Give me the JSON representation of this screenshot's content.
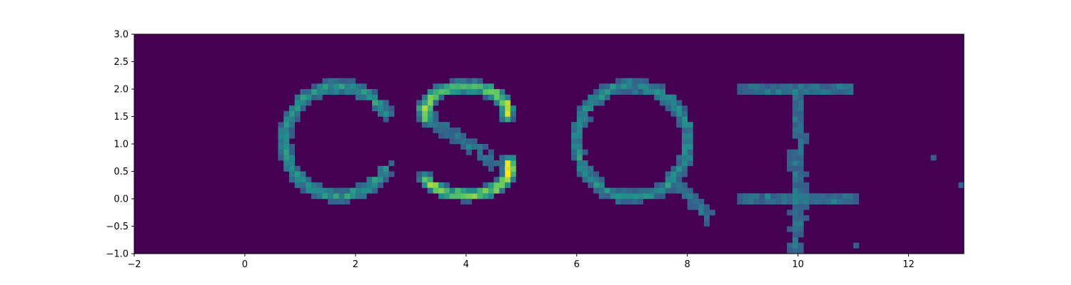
{
  "chart_data": {
    "type": "heatmap",
    "title": "",
    "xlabel": "",
    "ylabel": "",
    "xlim": [
      -2,
      13
    ],
    "ylim": [
      -1,
      3
    ],
    "xticks": [
      -2,
      0,
      2,
      4,
      6,
      8,
      10,
      12
    ],
    "xtick_labels": [
      "−2",
      "0",
      "2",
      "4",
      "6",
      "8",
      "10",
      "12"
    ],
    "yticks": [
      -1.0,
      -0.5,
      0.0,
      0.5,
      1.0,
      1.5,
      2.0,
      2.5,
      3.0
    ],
    "ytick_labels": [
      "−1.0",
      "−0.5",
      "0.0",
      "0.5",
      "1.0",
      "1.5",
      "2.0",
      "2.5",
      "3.0"
    ],
    "bin_size": 0.1,
    "colormap": "viridis",
    "background_color": "#440154",
    "grid": false,
    "glyph_shapes": [
      {
        "letter": "C",
        "center": [
          1.7,
          1.05
        ],
        "radius": 0.98,
        "gap_from_deg": -28,
        "gap_to_deg": 28
      },
      {
        "letter": "S",
        "center": [
          4.0,
          1.05
        ]
      },
      {
        "letter": "Q",
        "center": [
          7.0,
          1.05
        ],
        "radius": 1.0,
        "tail_from": [
          7.8,
          0.3
        ],
        "tail_to": [
          8.4,
          -0.35
        ]
      },
      {
        "letter": "⊥ / +",
        "vertical_x": 10.0,
        "vertical_y": [
          -1.0,
          2.0
        ],
        "top_bar": [
          [
            9.0,
            2.0
          ],
          [
            11.0,
            2.0
          ]
        ],
        "mid_bar": [
          [
            9.0,
            0.0
          ],
          [
            11.0,
            0.0
          ]
        ]
      }
    ],
    "isolated_cells": [
      {
        "x": 12.45,
        "y": 0.75
      },
      {
        "x": 12.95,
        "y": 0.25
      },
      {
        "x": 11.05,
        "y": -0.85
      }
    ]
  }
}
